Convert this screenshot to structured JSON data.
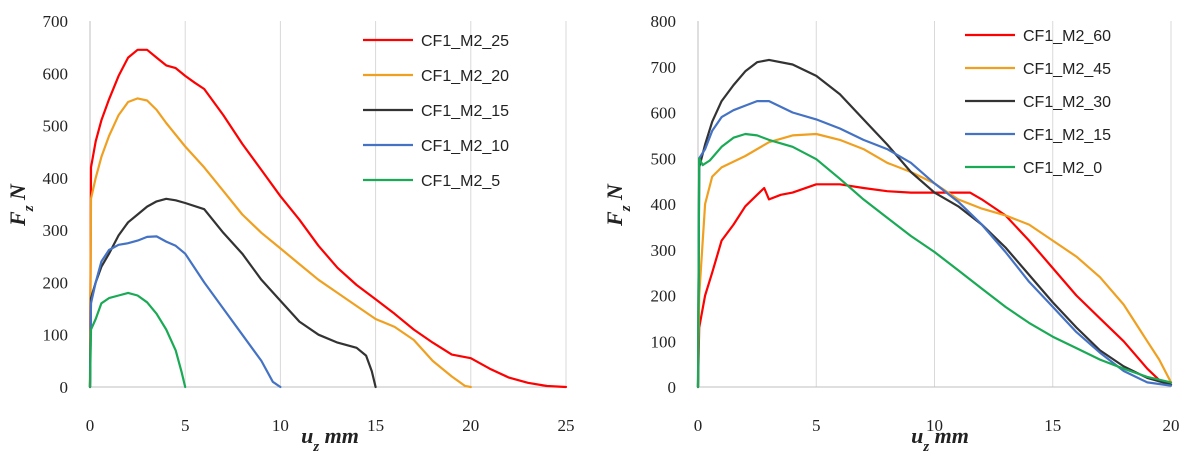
{
  "chart_data": [
    {
      "type": "line",
      "xlabel": "u_z mm",
      "ylabel": "F_z N",
      "xlim": [
        0,
        25
      ],
      "ylim": [
        0,
        700
      ],
      "xticks": [
        0,
        5,
        10,
        15,
        20,
        25
      ],
      "yticks": [
        0,
        100,
        200,
        300,
        400,
        500,
        600,
        700
      ],
      "grid": "vertical",
      "legend_position": "top-right",
      "series": [
        {
          "name": "CF1_M2_25",
          "color": "#ff0000",
          "points": [
            [
              0,
              0
            ],
            [
              0.05,
              420
            ],
            [
              0.3,
              470
            ],
            [
              0.6,
              510
            ],
            [
              1,
              550
            ],
            [
              1.5,
              595
            ],
            [
              2,
              630
            ],
            [
              2.5,
              645
            ],
            [
              3,
              645
            ],
            [
              3.5,
              630
            ],
            [
              4,
              615
            ],
            [
              4.5,
              610
            ],
            [
              5,
              595
            ],
            [
              5.5,
              582
            ],
            [
              6,
              570
            ],
            [
              7,
              520
            ],
            [
              8,
              465
            ],
            [
              9,
              415
            ],
            [
              10,
              365
            ],
            [
              11,
              320
            ],
            [
              12,
              270
            ],
            [
              13,
              228
            ],
            [
              14,
              195
            ],
            [
              15,
              168
            ],
            [
              16,
              140
            ],
            [
              17,
              110
            ],
            [
              18,
              85
            ],
            [
              19,
              62
            ],
            [
              20,
              55
            ],
            [
              21,
              35
            ],
            [
              22,
              18
            ],
            [
              23,
              8
            ],
            [
              24,
              2
            ],
            [
              25,
              0
            ]
          ]
        },
        {
          "name": "CF1_M2_20",
          "color": "#f0a020",
          "points": [
            [
              0,
              0
            ],
            [
              0.05,
              360
            ],
            [
              0.3,
              400
            ],
            [
              0.6,
              440
            ],
            [
              1,
              480
            ],
            [
              1.5,
              520
            ],
            [
              2,
              545
            ],
            [
              2.5,
              552
            ],
            [
              3,
              548
            ],
            [
              3.5,
              530
            ],
            [
              4,
              505
            ],
            [
              5,
              460
            ],
            [
              6,
              420
            ],
            [
              7,
              375
            ],
            [
              8,
              330
            ],
            [
              9,
              295
            ],
            [
              10,
              265
            ],
            [
              11,
              235
            ],
            [
              12,
              205
            ],
            [
              13,
              180
            ],
            [
              14,
              155
            ],
            [
              15,
              130
            ],
            [
              16,
              115
            ],
            [
              17,
              90
            ],
            [
              18,
              50
            ],
            [
              19,
              20
            ],
            [
              19.7,
              2
            ],
            [
              20,
              0
            ]
          ]
        },
        {
          "name": "CF1_M2_15",
          "color": "#333333",
          "points": [
            [
              0,
              0
            ],
            [
              0.05,
              170
            ],
            [
              0.3,
              200
            ],
            [
              0.6,
              230
            ],
            [
              1,
              255
            ],
            [
              1.5,
              290
            ],
            [
              2,
              315
            ],
            [
              2.5,
              330
            ],
            [
              3,
              345
            ],
            [
              3.5,
              355
            ],
            [
              4,
              360
            ],
            [
              4.5,
              357
            ],
            [
              5,
              352
            ],
            [
              6,
              340
            ],
            [
              7,
              295
            ],
            [
              8,
              255
            ],
            [
              9,
              205
            ],
            [
              10,
              165
            ],
            [
              11,
              125
            ],
            [
              12,
              100
            ],
            [
              13,
              85
            ],
            [
              14,
              75
            ],
            [
              14.5,
              60
            ],
            [
              14.8,
              30
            ],
            [
              15,
              0
            ]
          ]
        },
        {
          "name": "CF1_M2_10",
          "color": "#4472c4",
          "points": [
            [
              0,
              0
            ],
            [
              0.05,
              160
            ],
            [
              0.3,
              200
            ],
            [
              0.6,
              240
            ],
            [
              1,
              262
            ],
            [
              1.5,
              272
            ],
            [
              2,
              275
            ],
            [
              2.5,
              280
            ],
            [
              3,
              287
            ],
            [
              3.5,
              288
            ],
            [
              4,
              278
            ],
            [
              4.5,
              270
            ],
            [
              5,
              255
            ],
            [
              6,
              200
            ],
            [
              7,
              150
            ],
            [
              8,
              100
            ],
            [
              9,
              50
            ],
            [
              9.6,
              10
            ],
            [
              10,
              0
            ]
          ]
        },
        {
          "name": "CF1_M2_5",
          "color": "#1aaa55",
          "points": [
            [
              0,
              0
            ],
            [
              0.05,
              110
            ],
            [
              0.3,
              130
            ],
            [
              0.6,
              160
            ],
            [
              1,
              170
            ],
            [
              1.5,
              175
            ],
            [
              2,
              180
            ],
            [
              2.5,
              175
            ],
            [
              3,
              162
            ],
            [
              3.5,
              140
            ],
            [
              4,
              110
            ],
            [
              4.5,
              70
            ],
            [
              4.8,
              30
            ],
            [
              5,
              0
            ]
          ]
        }
      ]
    },
    {
      "type": "line",
      "xlabel": "u_z mm",
      "ylabel": "F_z N",
      "xlim": [
        0,
        20
      ],
      "ylim": [
        0,
        800
      ],
      "xticks": [
        0,
        5,
        10,
        15,
        20
      ],
      "yticks": [
        0,
        100,
        200,
        300,
        400,
        500,
        600,
        700,
        800
      ],
      "grid": "vertical",
      "legend_position": "top-right",
      "series": [
        {
          "name": "CF1_M2_60",
          "color": "#ff0000",
          "points": [
            [
              0,
              0
            ],
            [
              0.05,
              130
            ],
            [
              0.3,
              200
            ],
            [
              0.6,
              250
            ],
            [
              1,
              320
            ],
            [
              1.5,
              355
            ],
            [
              2,
              395
            ],
            [
              2.5,
              420
            ],
            [
              2.8,
              435
            ],
            [
              3,
              410
            ],
            [
              3.5,
              420
            ],
            [
              4,
              425
            ],
            [
              5,
              443
            ],
            [
              6,
              443
            ],
            [
              7,
              435
            ],
            [
              8,
              428
            ],
            [
              9,
              425
            ],
            [
              10,
              425
            ],
            [
              11,
              425
            ],
            [
              11.5,
              425
            ],
            [
              12,
              410
            ],
            [
              13,
              375
            ],
            [
              14,
              320
            ],
            [
              15,
              260
            ],
            [
              16,
              200
            ],
            [
              17,
              150
            ],
            [
              18,
              100
            ],
            [
              19,
              40
            ],
            [
              19.5,
              15
            ],
            [
              20,
              5
            ]
          ]
        },
        {
          "name": "CF1_M2_45",
          "color": "#f0a020",
          "points": [
            [
              0,
              0
            ],
            [
              0.05,
              200
            ],
            [
              0.3,
              400
            ],
            [
              0.6,
              460
            ],
            [
              1,
              480
            ],
            [
              2,
              505
            ],
            [
              3,
              535
            ],
            [
              4,
              550
            ],
            [
              5,
              553
            ],
            [
              6,
              540
            ],
            [
              7,
              520
            ],
            [
              8,
              490
            ],
            [
              9,
              470
            ],
            [
              10,
              445
            ],
            [
              11,
              410
            ],
            [
              12,
              390
            ],
            [
              13,
              375
            ],
            [
              14,
              355
            ],
            [
              15,
              320
            ],
            [
              16,
              285
            ],
            [
              17,
              240
            ],
            [
              18,
              180
            ],
            [
              19,
              100
            ],
            [
              19.5,
              60
            ],
            [
              20,
              10
            ]
          ]
        },
        {
          "name": "CF1_M2_30",
          "color": "#333333",
          "points": [
            [
              0,
              0
            ],
            [
              0.05,
              480
            ],
            [
              0.3,
              530
            ],
            [
              0.6,
              580
            ],
            [
              1,
              625
            ],
            [
              1.5,
              660
            ],
            [
              2,
              690
            ],
            [
              2.5,
              710
            ],
            [
              3,
              715
            ],
            [
              4,
              705
            ],
            [
              5,
              680
            ],
            [
              6,
              640
            ],
            [
              7,
              585
            ],
            [
              8,
              530
            ],
            [
              9,
              470
            ],
            [
              10,
              425
            ],
            [
              11,
              395
            ],
            [
              12,
              355
            ],
            [
              13,
              305
            ],
            [
              14,
              245
            ],
            [
              15,
              185
            ],
            [
              16,
              130
            ],
            [
              17,
              80
            ],
            [
              18,
              45
            ],
            [
              19,
              20
            ],
            [
              20,
              5
            ]
          ]
        },
        {
          "name": "CF1_M2_15",
          "color": "#4472c4",
          "points": [
            [
              0,
              0
            ],
            [
              0.05,
              500
            ],
            [
              0.3,
              520
            ],
            [
              0.6,
              560
            ],
            [
              1,
              590
            ],
            [
              1.5,
              605
            ],
            [
              2,
              615
            ],
            [
              2.5,
              625
            ],
            [
              3,
              625
            ],
            [
              4,
              600
            ],
            [
              5,
              585
            ],
            [
              6,
              565
            ],
            [
              7,
              540
            ],
            [
              8,
              520
            ],
            [
              9,
              490
            ],
            [
              10,
              445
            ],
            [
              11,
              405
            ],
            [
              12,
              355
            ],
            [
              13,
              295
            ],
            [
              14,
              230
            ],
            [
              15,
              175
            ],
            [
              16,
              120
            ],
            [
              17,
              75
            ],
            [
              18,
              35
            ],
            [
              19,
              10
            ],
            [
              20,
              3
            ]
          ]
        },
        {
          "name": "CF1_M2_0",
          "color": "#1aaa55",
          "points": [
            [
              0,
              0
            ],
            [
              0.05,
              500
            ],
            [
              0.2,
              485
            ],
            [
              0.5,
              495
            ],
            [
              1,
              525
            ],
            [
              1.5,
              545
            ],
            [
              2,
              553
            ],
            [
              2.5,
              550
            ],
            [
              3,
              540
            ],
            [
              4,
              525
            ],
            [
              5,
              498
            ],
            [
              6,
              455
            ],
            [
              7,
              410
            ],
            [
              8,
              370
            ],
            [
              9,
              330
            ],
            [
              10,
              295
            ],
            [
              11,
              255
            ],
            [
              12,
              215
            ],
            [
              13,
              175
            ],
            [
              14,
              140
            ],
            [
              15,
              110
            ],
            [
              16,
              85
            ],
            [
              17,
              60
            ],
            [
              18,
              40
            ],
            [
              19,
              22
            ],
            [
              20,
              10
            ]
          ]
        }
      ]
    }
  ]
}
